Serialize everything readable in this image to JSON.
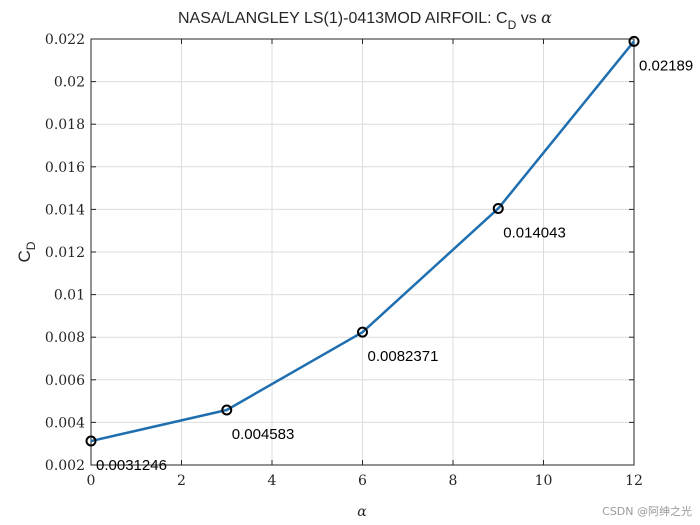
{
  "chart_data": {
    "type": "line",
    "title_main": "NASA/LANGLEY LS(1)-0413MOD AIRFOIL: C",
    "title_sub": "D",
    "title_tail": " vs ",
    "title_alpha": "α",
    "xlabel": "α",
    "ylabel_main": "C",
    "ylabel_sub": "D",
    "xlim": [
      0,
      12
    ],
    "ylim": [
      0.002,
      0.022
    ],
    "xticks": [
      0,
      2,
      4,
      6,
      8,
      10,
      12
    ],
    "xtick_labels": [
      "0",
      "2",
      "4",
      "6",
      "8",
      "10",
      "12"
    ],
    "yticks": [
      0.002,
      0.004,
      0.006,
      0.008,
      0.01,
      0.012,
      0.014,
      0.016,
      0.018,
      0.02,
      0.022
    ],
    "ytick_labels": [
      "0.002",
      "0.004",
      "0.006",
      "0.008",
      "0.01",
      "0.012",
      "0.014",
      "0.016",
      "0.018",
      "0.02",
      "0.022"
    ],
    "grid": true,
    "series": [
      {
        "x": [
          0,
          3,
          6,
          9,
          12
        ],
        "y": [
          0.0031246,
          0.004583,
          0.0082371,
          0.014043,
          0.02189
        ],
        "point_labels": [
          "0.0031246",
          "0.004583",
          "0.0082371",
          "0.014043",
          "0.02189"
        ],
        "color": "#1f6fb0",
        "marker_color": "#000000"
      }
    ]
  },
  "watermark": "CSDN @阿绅之光"
}
